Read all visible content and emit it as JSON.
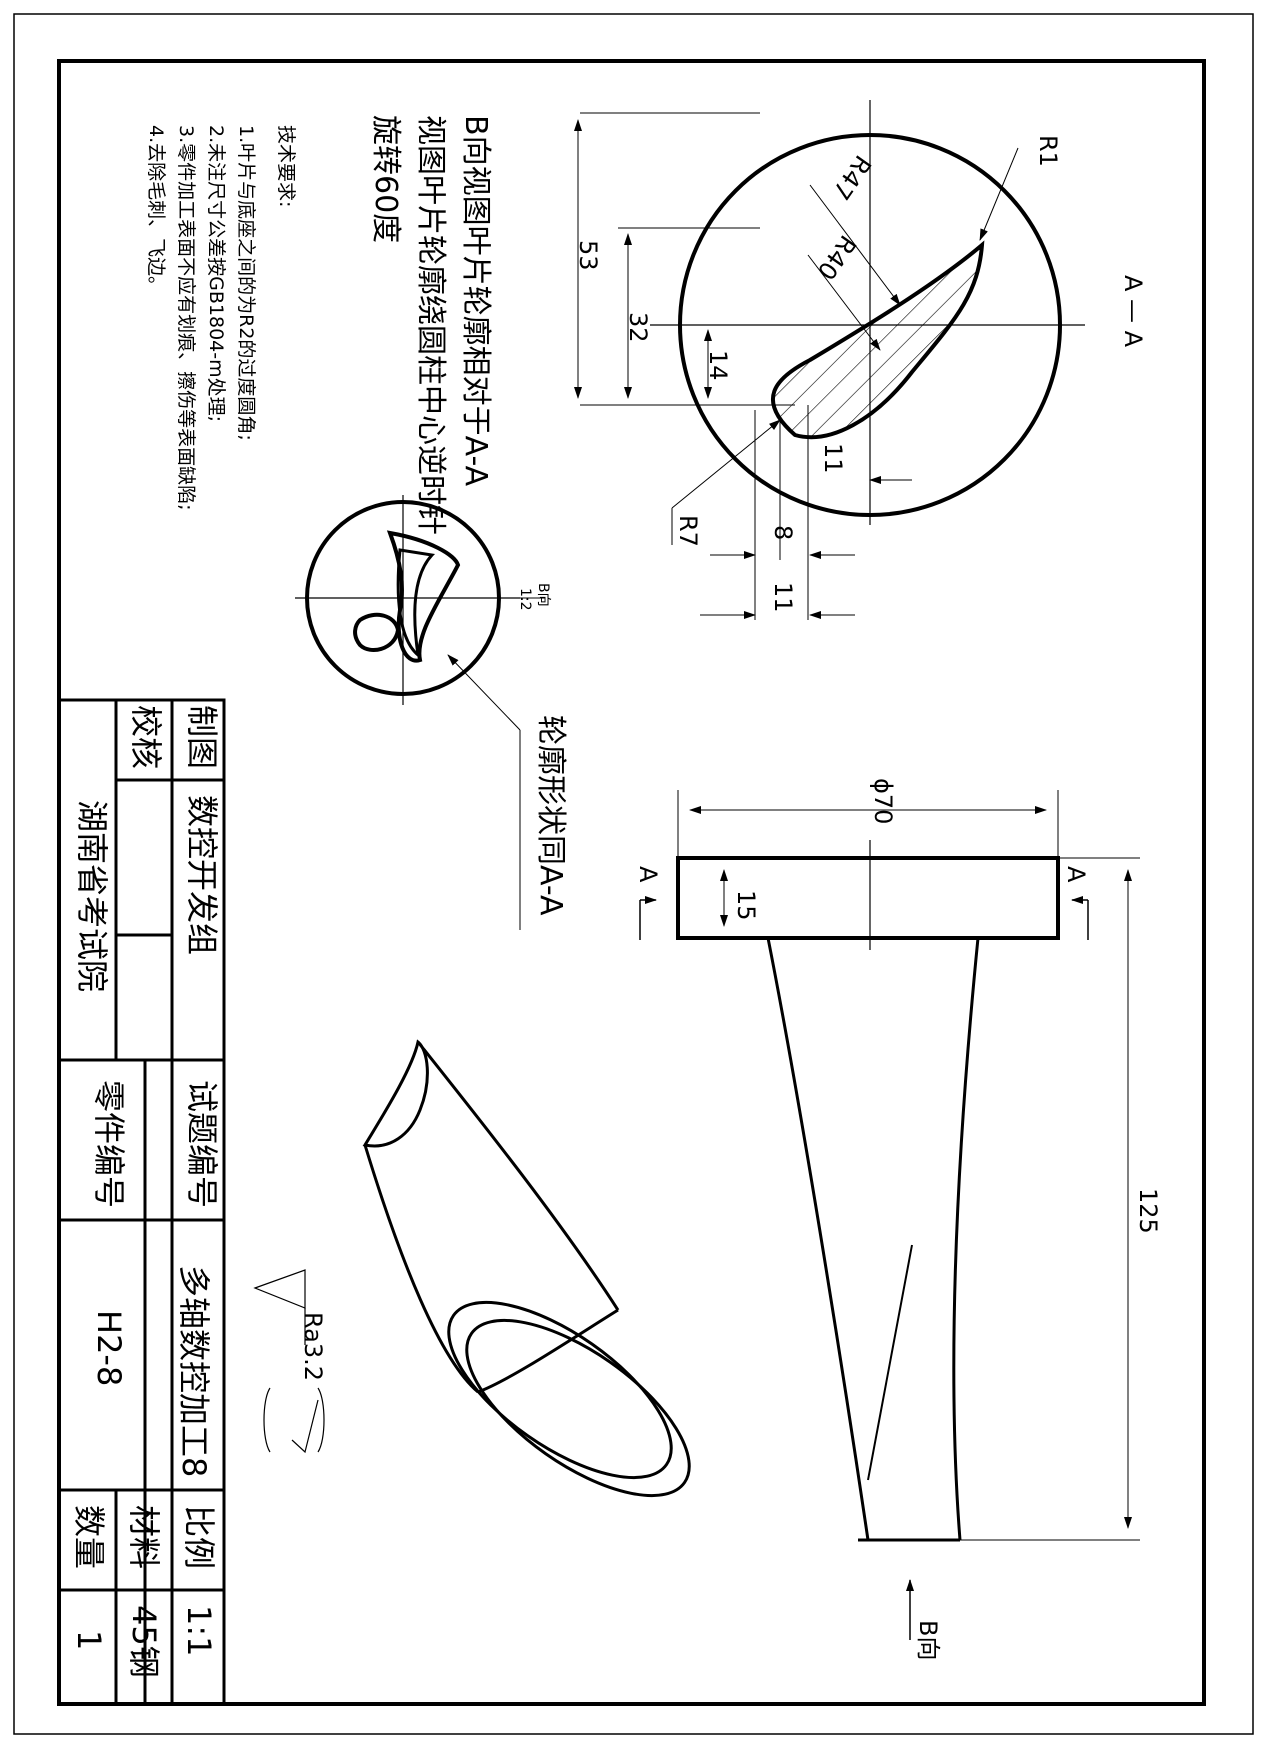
{
  "notes": {
    "heading_line1": "B向视图叶片轮廓相对于A-A",
    "heading_line2": "视图叶片轮廓绕圆柱中心逆时针",
    "heading_line3": "旋转60度",
    "tech_title": "技术要求:",
    "tech_items": [
      "1.叶片与底座之间的为R2的过度圆角;",
      "2.未注尺寸公差按GB1804-m处理;",
      "3.零件加工表面不应有划痕、擦伤等表面缺陷;",
      "4.去除毛刺、飞边。"
    ]
  },
  "section_view": {
    "label": "A — A",
    "dims": [
      "R1",
      "R47",
      "R40",
      "53",
      "32",
      "14",
      "11",
      "R7",
      "8",
      "11"
    ]
  },
  "b_view": {
    "label_top": "B向",
    "label_bottom": "1:2",
    "callout": "轮廓形状同A-A"
  },
  "front_view": {
    "dia": "ϕ70",
    "thickness": "15",
    "height": "125",
    "section_mark_left": "A",
    "section_mark_right": "A",
    "b_arrow_label": "B向"
  },
  "roughness": {
    "value": "Ra3.2"
  },
  "title_block": {
    "drawn_label": "制图",
    "check_label": "校核",
    "group": "数控开发组",
    "institute": "湖南省考试院",
    "exam_no_label": "试题编号",
    "part_no_label": "零件编号",
    "part_name": "多轴数控加工8",
    "part_no": "H2-8",
    "scale_label": "比例",
    "scale": "1:1",
    "material_label": "材料",
    "material": "45钢",
    "qty_label": "数量",
    "qty": "1"
  }
}
